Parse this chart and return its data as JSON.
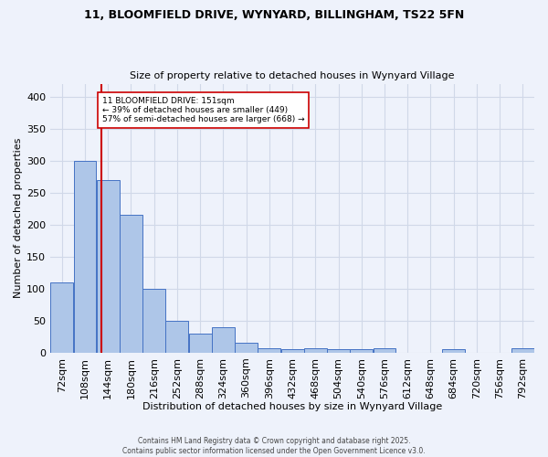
{
  "title_line1": "11, BLOOMFIELD DRIVE, WYNYARD, BILLINGHAM, TS22 5FN",
  "title_line2": "Size of property relative to detached houses in Wynyard Village",
  "xlabel": "Distribution of detached houses by size in Wynyard Village",
  "ylabel": "Number of detached properties",
  "footnote": "Contains HM Land Registry data © Crown copyright and database right 2025.\nContains public sector information licensed under the Open Government Licence v3.0.",
  "bins_labels": [
    "72sqm",
    "108sqm",
    "144sqm",
    "180sqm",
    "216sqm",
    "252sqm",
    "288sqm",
    "324sqm",
    "360sqm",
    "396sqm",
    "432sqm",
    "468sqm",
    "504sqm",
    "540sqm",
    "576sqm",
    "612sqm",
    "648sqm",
    "684sqm",
    "720sqm",
    "756sqm",
    "792sqm"
  ],
  "bin_edges": [
    72,
    108,
    144,
    180,
    216,
    252,
    288,
    324,
    360,
    396,
    432,
    468,
    504,
    540,
    576,
    612,
    648,
    684,
    720,
    756,
    792
  ],
  "bar_heights": [
    110,
    300,
    270,
    215,
    100,
    50,
    30,
    40,
    15,
    7,
    5,
    7,
    5,
    5,
    7,
    0,
    0,
    5,
    0,
    0,
    7
  ],
  "bar_color": "#aec6e8",
  "bar_edge_color": "#4472c4",
  "grid_color": "#d0d8e8",
  "background_color": "#eef2fb",
  "vline_x": 151,
  "vline_color": "#cc0000",
  "annotation_text": "11 BLOOMFIELD DRIVE: 151sqm\n← 39% of detached houses are smaller (449)\n57% of semi-detached houses are larger (668) →",
  "annotation_box_color": "white",
  "annotation_box_edge_color": "#cc0000",
  "ylim": [
    0,
    420
  ],
  "yticks": [
    0,
    50,
    100,
    150,
    200,
    250,
    300,
    350,
    400
  ],
  "bin_width": 36
}
